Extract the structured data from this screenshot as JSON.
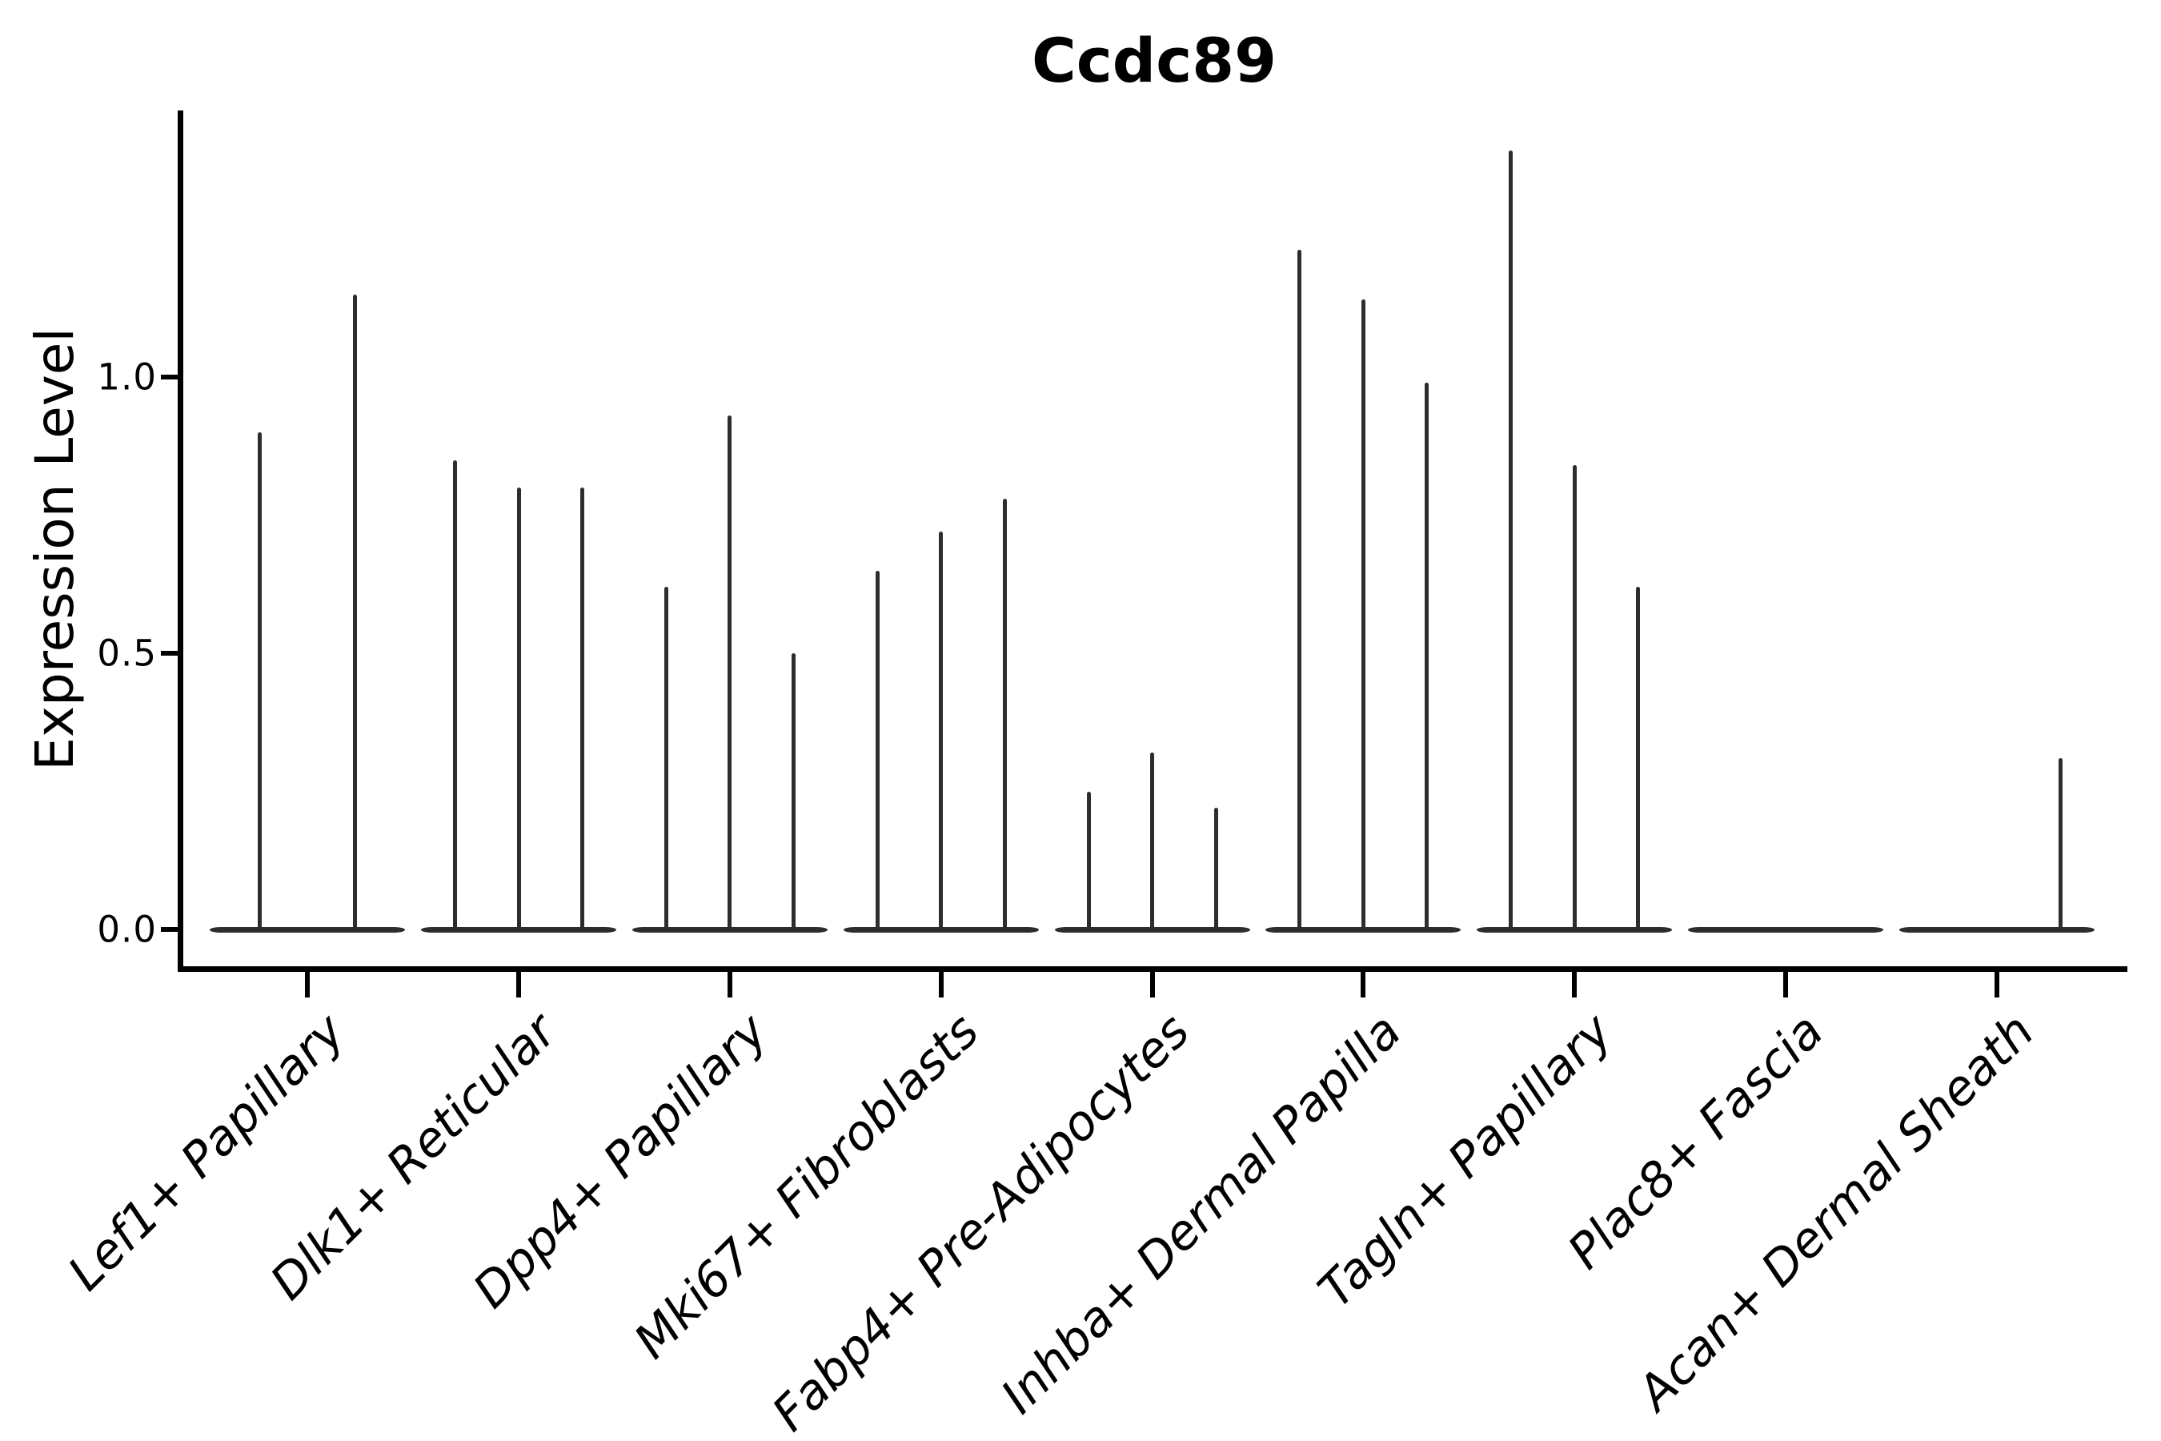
{
  "title": "Ccdc89",
  "y_axis": {
    "label": "Expression Level"
  },
  "colors": {
    "violin": "#2d2d2d",
    "axis": "#000000",
    "text": "#000000",
    "background": "#ffffff"
  },
  "chart_data": {
    "type": "violin",
    "title": "Ccdc89",
    "xlabel": "",
    "ylabel": "Expression Level",
    "yticks": [
      0.0,
      0.5,
      1.0
    ],
    "ylim": [
      -0.07,
      1.48
    ],
    "grid": false,
    "legend": "none",
    "note": "Expression concentrated at 0 for every group (wide flat violin base at y=0); thin spikes mark the upper tail of each sub-violin, top = max expression",
    "categories": [
      "Lef1+ Papillary",
      "Dlk1+ Reticular",
      "Dpp4+ Papillary",
      "Mki67+ Fibroblasts",
      "Fabp4+ Pre-Adipocytes",
      "Inhba+ Dermal Papilla",
      "Tagln+ Papillary",
      "Plac8+ Fascia",
      "Acan+ Dermal Sheath"
    ],
    "violin_max_values_per_category": [
      [
        0.9,
        1.15
      ],
      [
        0.85,
        0.8,
        0.8
      ],
      [
        0.62,
        0.93,
        0.5
      ],
      [
        0.65,
        0.72,
        0.78
      ],
      [
        0.25,
        0.32,
        0.22
      ],
      [
        1.23,
        1.14,
        0.99
      ],
      [
        1.41,
        0.84,
        0.62
      ],
      [
        0.0,
        0.0,
        0.0
      ],
      [
        0.0,
        0.0,
        0.31
      ]
    ]
  }
}
